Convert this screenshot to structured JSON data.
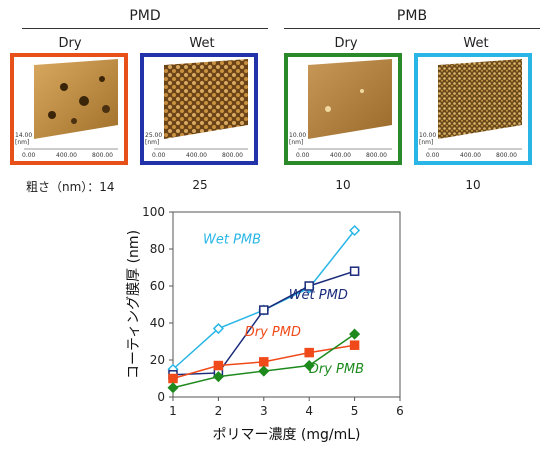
{
  "afm": {
    "groups": [
      {
        "title": "PMD"
      },
      {
        "title": "PMB"
      }
    ],
    "panels": [
      {
        "label": "Dry",
        "color": "#e8501a",
        "height_scale": "14.00",
        "height_unit": "[nm]",
        "xticks": [
          "0.00",
          "400.00",
          "800.00"
        ],
        "xunit": "[nm]",
        "roughness": "14"
      },
      {
        "label": "Wet",
        "color": "#2233aa",
        "height_scale": "25.00",
        "height_unit": "[nm]",
        "xticks": [
          "0.00",
          "400.00",
          "800.00"
        ],
        "xunit": "[nm]",
        "roughness": "25"
      },
      {
        "label": "Dry",
        "color": "#2a8a2a",
        "height_scale": "10.00",
        "height_unit": "[nm]",
        "xticks": [
          "0.00",
          "400.00",
          "800.00"
        ],
        "xunit": "[nm]",
        "roughness": "10"
      },
      {
        "label": "Wet",
        "color": "#29b6e6",
        "height_scale": "10.00",
        "height_unit": "[nm]",
        "xticks": [
          "0.00",
          "400.00",
          "800.00"
        ],
        "xunit": "[nm]",
        "roughness": "10"
      }
    ],
    "roughness_label": "粗さ（nm）：14"
  },
  "chart_data": {
    "type": "line",
    "xlabel": "ポリマー濃度 (mg/mL)",
    "ylabel": "コーティング膜厚 (nm)",
    "xlim": [
      1,
      6
    ],
    "ylim": [
      0,
      100
    ],
    "xticks": [
      1,
      2,
      3,
      4,
      5,
      6
    ],
    "yticks": [
      0,
      20,
      40,
      60,
      80,
      100
    ],
    "grid": false,
    "x": [
      1,
      2,
      3,
      4,
      5
    ],
    "series": [
      {
        "name": "Wet PMB",
        "values": [
          15,
          37,
          47,
          59,
          90
        ],
        "color": "#29b6e6",
        "marker": "open-diamond"
      },
      {
        "name": "Wet PMD",
        "values": [
          12,
          13,
          47,
          60,
          68
        ],
        "color": "#1a2a7a",
        "marker": "open-square"
      },
      {
        "name": "Dry PMD",
        "values": [
          10,
          17,
          19,
          24,
          28
        ],
        "color": "#f04a1a",
        "marker": "filled-square"
      },
      {
        "name": "Dry PMB",
        "values": [
          5,
          11,
          14,
          17,
          34
        ],
        "color": "#1e8a1e",
        "marker": "filled-diamond"
      }
    ]
  }
}
